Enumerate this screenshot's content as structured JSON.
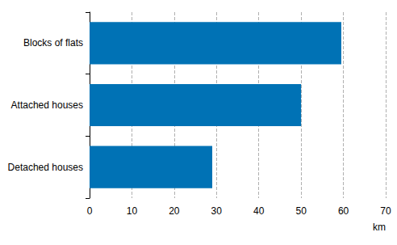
{
  "chart_data": {
    "type": "bar",
    "orientation": "horizontal",
    "categories": [
      "Blocks of flats",
      "Attached houses",
      "Detached houses"
    ],
    "values": [
      59.5,
      50,
      29
    ],
    "color": "#0072b5",
    "xlabel": "km",
    "xlim": [
      0,
      70
    ],
    "xticks": [
      0,
      10,
      20,
      30,
      40,
      50,
      60,
      70
    ],
    "grid": true
  }
}
